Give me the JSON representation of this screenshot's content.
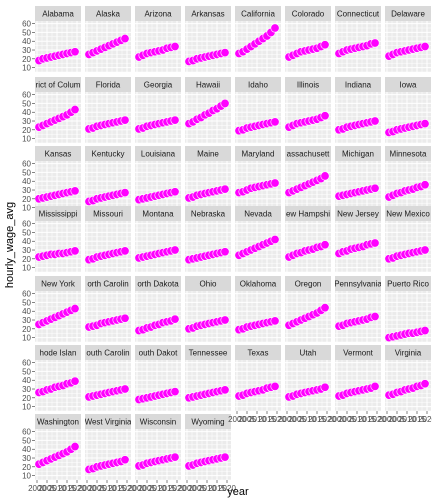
{
  "chart_data": {
    "type": "scatter",
    "xlabel": "year",
    "ylabel": "hourly_wage_avg",
    "y_ticks": [
      10,
      20,
      30,
      40,
      50,
      60
    ],
    "x_ticks": [
      "2000",
      "2005",
      "2010",
      "2015",
      "2020"
    ],
    "ylim": [
      5,
      63
    ],
    "xlim": [
      1999,
      2022
    ],
    "years": [
      2001,
      2003,
      2005,
      2007,
      2009,
      2011,
      2013,
      2015,
      2017,
      2019
    ],
    "point_color": "#FF00FF",
    "panel_background": "#EBEBEB",
    "strip_background": "#D9D9D9",
    "series": [
      {
        "name": "Alabama",
        "strip_label": "Alabama",
        "values": [
          18,
          20,
          21,
          22,
          23,
          24,
          25,
          26,
          27,
          28
        ]
      },
      {
        "name": "Alaska",
        "strip_label": "Alaska",
        "values": [
          25,
          27,
          29,
          31,
          33,
          35,
          37,
          39,
          41,
          43
        ]
      },
      {
        "name": "Arizona",
        "strip_label": "Arizona",
        "values": [
          22,
          24,
          26,
          27,
          28,
          29,
          30,
          32,
          33,
          34
        ]
      },
      {
        "name": "Arkansas",
        "strip_label": "Arkansas",
        "values": [
          17,
          18,
          20,
          21,
          22,
          23,
          24,
          25,
          26,
          27
        ]
      },
      {
        "name": "California",
        "strip_label": "California",
        "values": [
          26,
          28,
          31,
          34,
          37,
          40,
          43,
          46,
          50,
          55
        ]
      },
      {
        "name": "Colorado",
        "strip_label": "Colorado",
        "values": [
          22,
          24,
          26,
          28,
          29,
          30,
          31,
          32,
          34,
          36
        ]
      },
      {
        "name": "Connecticut",
        "strip_label": "Connecticut",
        "values": [
          26,
          28,
          30,
          31,
          32,
          33,
          34,
          35,
          37,
          38
        ]
      },
      {
        "name": "Delaware",
        "strip_label": "Delaware",
        "values": [
          23,
          25,
          27,
          28,
          29,
          30,
          31,
          32,
          33,
          34
        ]
      },
      {
        "name": "District of Columbia",
        "strip_label": "rict of Colum",
        "values": [
          23,
          25,
          27,
          29,
          31,
          33,
          35,
          37,
          40,
          43
        ]
      },
      {
        "name": "Florida",
        "strip_label": "Florida",
        "values": [
          21,
          22,
          24,
          25,
          26,
          27,
          28,
          29,
          30,
          31
        ]
      },
      {
        "name": "Georgia",
        "strip_label": "Georgia",
        "values": [
          21,
          22,
          24,
          25,
          26,
          27,
          28,
          29,
          30,
          31
        ]
      },
      {
        "name": "Hawaii",
        "strip_label": "Hawaii",
        "values": [
          27,
          29,
          32,
          34,
          37,
          39,
          42,
          44,
          47,
          50
        ]
      },
      {
        "name": "Idaho",
        "strip_label": "Idaho",
        "values": [
          19,
          20,
          22,
          23,
          24,
          25,
          26,
          27,
          28,
          29
        ]
      },
      {
        "name": "Illinois",
        "strip_label": "Illinois",
        "values": [
          23,
          25,
          27,
          28,
          29,
          30,
          31,
          32,
          34,
          36
        ]
      },
      {
        "name": "Indiana",
        "strip_label": "Indiana",
        "values": [
          20,
          21,
          23,
          24,
          25,
          26,
          27,
          28,
          29,
          30
        ]
      },
      {
        "name": "Iowa",
        "strip_label": "Iowa",
        "values": [
          17,
          18,
          20,
          21,
          22,
          23,
          24,
          25,
          26,
          27
        ]
      },
      {
        "name": "Kansas",
        "strip_label": "Kansas",
        "values": [
          20,
          21,
          22,
          23,
          24,
          25,
          26,
          27,
          28,
          29
        ]
      },
      {
        "name": "Kentucky",
        "strip_label": "Kentucky",
        "values": [
          17,
          18,
          20,
          21,
          22,
          23,
          24,
          25,
          26,
          27
        ]
      },
      {
        "name": "Louisiana",
        "strip_label": "Louisiana",
        "values": [
          19,
          20,
          21,
          22,
          23,
          24,
          25,
          26,
          27,
          28
        ]
      },
      {
        "name": "Maine",
        "strip_label": "Maine",
        "values": [
          21,
          22,
          24,
          25,
          26,
          27,
          28,
          29,
          30,
          31
        ]
      },
      {
        "name": "Maryland",
        "strip_label": "Maryland",
        "values": [
          27,
          28,
          30,
          32,
          33,
          34,
          35,
          36,
          37,
          38
        ]
      },
      {
        "name": "Massachusetts",
        "strip_label": "assachusett",
        "values": [
          27,
          29,
          31,
          33,
          35,
          37,
          39,
          41,
          43,
          46
        ]
      },
      {
        "name": "Michigan",
        "strip_label": "Michigan",
        "values": [
          23,
          24,
          25,
          26,
          27,
          28,
          29,
          30,
          31,
          32
        ]
      },
      {
        "name": "Minnesota",
        "strip_label": "Minnesota",
        "values": [
          22,
          24,
          26,
          27,
          29,
          30,
          31,
          33,
          34,
          36
        ]
      },
      {
        "name": "Mississippi",
        "strip_label": "Mississippi",
        "values": [
          22,
          23,
          24,
          25,
          25,
          26,
          26,
          27,
          28,
          29
        ]
      },
      {
        "name": "Missouri",
        "strip_label": "Missouri",
        "values": [
          19,
          20,
          22,
          23,
          24,
          25,
          26,
          27,
          28,
          29
        ]
      },
      {
        "name": "Montana",
        "strip_label": "Montana",
        "values": [
          21,
          22,
          23,
          24,
          25,
          26,
          27,
          28,
          29,
          30
        ]
      },
      {
        "name": "Nebraska",
        "strip_label": "Nebraska",
        "values": [
          19,
          20,
          21,
          22,
          23,
          24,
          25,
          26,
          27,
          28
        ]
      },
      {
        "name": "Nevada",
        "strip_label": "Nevada",
        "values": [
          24,
          26,
          28,
          30,
          32,
          34,
          36,
          38,
          40,
          42
        ]
      },
      {
        "name": "New Hampshire",
        "strip_label": "ew Hampshi",
        "values": [
          22,
          24,
          26,
          27,
          29,
          30,
          31,
          33,
          34,
          36
        ]
      },
      {
        "name": "New Jersey",
        "strip_label": "New Jersey",
        "values": [
          26,
          28,
          29,
          31,
          32,
          33,
          34,
          36,
          37,
          38
        ]
      },
      {
        "name": "New Mexico",
        "strip_label": "New Mexico",
        "values": [
          20,
          21,
          23,
          24,
          25,
          26,
          27,
          28,
          29,
          30
        ]
      },
      {
        "name": "New York",
        "strip_label": "New York",
        "values": [
          25,
          27,
          29,
          31,
          33,
          35,
          37,
          39,
          41,
          43
        ]
      },
      {
        "name": "North Carolina",
        "strip_label": "orth Carolin",
        "values": [
          22,
          23,
          24,
          26,
          27,
          28,
          29,
          30,
          31,
          32
        ]
      },
      {
        "name": "North Dakota",
        "strip_label": "orth Dakota",
        "values": [
          18,
          19,
          21,
          22,
          24,
          25,
          27,
          28,
          29,
          31
        ]
      },
      {
        "name": "Ohio",
        "strip_label": "Ohio",
        "values": [
          20,
          21,
          23,
          24,
          25,
          26,
          27,
          28,
          29,
          30
        ]
      },
      {
        "name": "Oklahoma",
        "strip_label": "Oklahoma",
        "values": [
          19,
          20,
          22,
          23,
          24,
          25,
          26,
          27,
          28,
          29
        ]
      },
      {
        "name": "Oregon",
        "strip_label": "Oregon",
        "values": [
          24,
          26,
          28,
          30,
          32,
          34,
          36,
          38,
          41,
          44
        ]
      },
      {
        "name": "Pennsylvania",
        "strip_label": "Pennsylvania",
        "values": [
          23,
          24,
          26,
          27,
          28,
          29,
          30,
          31,
          33,
          34
        ]
      },
      {
        "name": "Puerto Rico",
        "strip_label": "Puerto Rico",
        "values": [
          10,
          11,
          12,
          13,
          14,
          15,
          15,
          16,
          17,
          18
        ]
      },
      {
        "name": "Rhode Island",
        "strip_label": "hode Islan",
        "values": [
          26,
          27,
          29,
          30,
          32,
          33,
          34,
          36,
          37,
          39
        ]
      },
      {
        "name": "South Carolina",
        "strip_label": "outh Carolin",
        "values": [
          21,
          22,
          23,
          24,
          25,
          26,
          27,
          28,
          29,
          30
        ]
      },
      {
        "name": "South Dakota",
        "strip_label": "outh Dakot",
        "values": [
          18,
          19,
          20,
          21,
          22,
          23,
          24,
          25,
          26,
          27
        ]
      },
      {
        "name": "Tennessee",
        "strip_label": "Tennessee",
        "values": [
          20,
          21,
          22,
          23,
          24,
          25,
          26,
          27,
          28,
          29
        ]
      },
      {
        "name": "Texas",
        "strip_label": "Texas",
        "values": [
          22,
          23,
          25,
          26,
          27,
          28,
          29,
          31,
          32,
          33
        ]
      },
      {
        "name": "Utah",
        "strip_label": "Utah",
        "values": [
          21,
          22,
          24,
          25,
          26,
          27,
          28,
          29,
          30,
          32
        ]
      },
      {
        "name": "Vermont",
        "strip_label": "Vermont",
        "values": [
          22,
          23,
          25,
          26,
          27,
          28,
          29,
          30,
          31,
          33
        ]
      },
      {
        "name": "Virginia",
        "strip_label": "Virginia",
        "values": [
          23,
          24,
          26,
          27,
          29,
          30,
          31,
          33,
          34,
          36
        ]
      },
      {
        "name": "Washington",
        "strip_label": "Washington",
        "values": [
          23,
          25,
          27,
          29,
          31,
          33,
          35,
          37,
          40,
          43
        ]
      },
      {
        "name": "West Virginia",
        "strip_label": "West Virginia",
        "values": [
          17,
          18,
          20,
          21,
          22,
          23,
          24,
          25,
          26,
          28
        ]
      },
      {
        "name": "Wisconsin",
        "strip_label": "Wisconsin",
        "values": [
          21,
          22,
          24,
          25,
          26,
          27,
          28,
          29,
          30,
          31
        ]
      },
      {
        "name": "Wyoming",
        "strip_label": "Wyoming",
        "values": [
          21,
          22,
          24,
          25,
          26,
          27,
          28,
          29,
          30,
          31
        ]
      }
    ]
  }
}
